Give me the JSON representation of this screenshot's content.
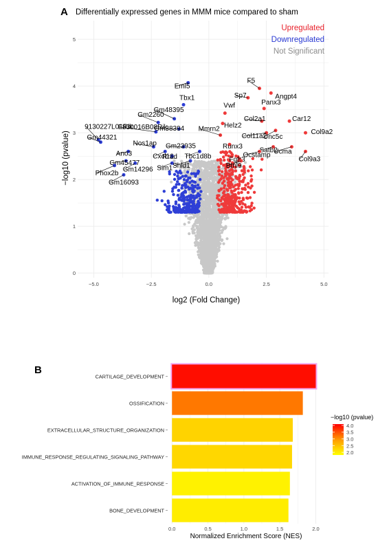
{
  "chart_data": [
    {
      "type": "scatter",
      "panel_label": "A",
      "title": "Differentially expressed genes in MMM mice compared to sham",
      "xlabel": "log2 (Fold Change)",
      "ylabel": "−log10 (pvalue)",
      "xlim": [
        -5.7,
        5.2
      ],
      "ylim": [
        -0.1,
        5.4
      ],
      "x_ticks": [
        -5.0,
        -2.5,
        0.0,
        2.5,
        5.0
      ],
      "x_tick_labels": [
        "−5.0",
        "−2.5",
        "0.0",
        "2.5",
        "5.0"
      ],
      "y_ticks": [
        0,
        1,
        2,
        3,
        4,
        5
      ],
      "grid": true,
      "legend": {
        "placement": "top-right",
        "entries": [
          {
            "label": "Upregulated",
            "color": "#e8202a"
          },
          {
            "label": "Downregulated",
            "color": "#2b3bd4"
          },
          {
            "label": "Not Significant",
            "color": "#8c8c8c"
          }
        ]
      },
      "series_colors": {
        "up": "#ef3a3a",
        "down": "#2e3fd6",
        "ns": "#c8c8c8"
      },
      "labeled_points": [
        {
          "label": "Eml5",
          "x": -0.9,
          "y": 4.07,
          "group": "down"
        },
        {
          "label": "Tbx1",
          "x": -1.1,
          "y": 3.6,
          "group": "down"
        },
        {
          "label": "Gm2260",
          "x": -2.2,
          "y": 3.22,
          "group": "down"
        },
        {
          "label": "Gm48395",
          "x": -1.5,
          "y": 3.3,
          "group": "down"
        },
        {
          "label": "Gm38394",
          "x": -1.3,
          "y": 3.08,
          "group": "down"
        },
        {
          "label": "9130227L01Rik",
          "x": -4.8,
          "y": 2.85,
          "group": "down"
        },
        {
          "label": "F830016B08Rik",
          "x": -2.3,
          "y": 3.02,
          "group": "down"
        },
        {
          "label": "Gm44321",
          "x": -4.7,
          "y": 2.8,
          "group": "down"
        },
        {
          "label": "Nos1ap",
          "x": -2.4,
          "y": 2.7,
          "group": "down"
        },
        {
          "label": "Ano3",
          "x": -3.5,
          "y": 2.6,
          "group": "down"
        },
        {
          "label": "Cxcl10",
          "x": -1.9,
          "y": 2.6,
          "group": "down"
        },
        {
          "label": "Gm23935",
          "x": -1.1,
          "y": 2.7,
          "group": "down"
        },
        {
          "label": "Gm45477",
          "x": -3.6,
          "y": 2.4,
          "group": "down"
        },
        {
          "label": "Rrad",
          "x": -1.6,
          "y": 2.5,
          "group": "down"
        },
        {
          "label": "Tbc1d8b",
          "x": -0.4,
          "y": 2.6,
          "group": "down"
        },
        {
          "label": "Phox2b",
          "x": -4.1,
          "y": 2.3,
          "group": "down"
        },
        {
          "label": "Gm14296",
          "x": -3.2,
          "y": 2.35,
          "group": "down"
        },
        {
          "label": "Sim1",
          "x": -1.6,
          "y": 2.35,
          "group": "down"
        },
        {
          "label": "Shld1",
          "x": -0.8,
          "y": 2.4,
          "group": "down"
        },
        {
          "label": "Gm16093",
          "x": -3.7,
          "y": 2.1,
          "group": "down"
        },
        {
          "label": "F5",
          "x": 2.2,
          "y": 3.95,
          "group": "up"
        },
        {
          "label": "Sp7",
          "x": 1.7,
          "y": 3.75,
          "group": "up"
        },
        {
          "label": "Angpt4",
          "x": 2.7,
          "y": 3.85,
          "group": "up"
        },
        {
          "label": "Panx3",
          "x": 2.4,
          "y": 3.52,
          "group": "up"
        },
        {
          "label": "Vwf",
          "x": 0.7,
          "y": 3.42,
          "group": "up"
        },
        {
          "label": "Col2a1",
          "x": 2.3,
          "y": 3.25,
          "group": "up"
        },
        {
          "label": "Car12",
          "x": 3.5,
          "y": 3.25,
          "group": "up"
        },
        {
          "label": "Helz2",
          "x": 0.6,
          "y": 3.2,
          "group": "up"
        },
        {
          "label": "Unc5c",
          "x": 2.9,
          "y": 3.05,
          "group": "up"
        },
        {
          "label": "Col11a2",
          "x": 2.5,
          "y": 3.0,
          "group": "up"
        },
        {
          "label": "Mmrn2",
          "x": 0.5,
          "y": 2.95,
          "group": "up"
        },
        {
          "label": "Col9a2",
          "x": 4.2,
          "y": 3.0,
          "group": "up"
        },
        {
          "label": "Runx3",
          "x": 0.9,
          "y": 2.75,
          "group": "up"
        },
        {
          "label": "Satb2",
          "x": 2.8,
          "y": 2.7,
          "group": "up"
        },
        {
          "label": "Ucma",
          "x": 3.6,
          "y": 2.7,
          "group": "up"
        },
        {
          "label": "Fgfr3",
          "x": 1.0,
          "y": 2.5,
          "group": "up"
        },
        {
          "label": "Ocstamp",
          "x": 2.2,
          "y": 2.6,
          "group": "up"
        },
        {
          "label": "Col9a3",
          "x": 4.2,
          "y": 2.6,
          "group": "up"
        },
        {
          "label": "Btnl9",
          "x": 1.4,
          "y": 2.4,
          "group": "up"
        }
      ]
    },
    {
      "type": "bar",
      "orientation": "horizontal",
      "panel_label": "B",
      "categories": [
        "CARTILAGE_DEVELOPMENT",
        "OSSIFICATION",
        "EXTRACELLULAR_STRUCTURE_ORGANIZATION",
        "IMMUNE_RESPONSE_REGULATING_SIGNALING_PATHWAY",
        "ACTIVATION_OF_IMMUNE_RESPONSE",
        "BONE_DEVELOPMENT"
      ],
      "values": [
        2.0,
        1.82,
        1.68,
        1.67,
        1.64,
        1.62
      ],
      "color_values": [
        4.0,
        3.2,
        2.3,
        2.25,
        1.95,
        2.0
      ],
      "xlabel": "Normalized Enrichment Score (NES)",
      "ylabel": "",
      "xlim": [
        -0.06,
        2.12
      ],
      "x_ticks": [
        0.0,
        0.5,
        1.0,
        1.5,
        2.0
      ],
      "x_tick_labels": [
        "0.0",
        "0.5",
        "1.0",
        "1.5",
        "2.0"
      ],
      "grid": true,
      "colorbar": {
        "title": "−log10 (pvalue)",
        "range": [
          1.8,
          4.1
        ],
        "ticks": [
          2.0,
          2.5,
          3.0,
          3.5,
          4.0
        ],
        "tick_labels": [
          "2.0",
          "2.5",
          "3.0",
          "3.5",
          "4.0"
        ],
        "colors": [
          "#ffff00",
          "#ff8c00",
          "#ff0000"
        ]
      }
    }
  ]
}
